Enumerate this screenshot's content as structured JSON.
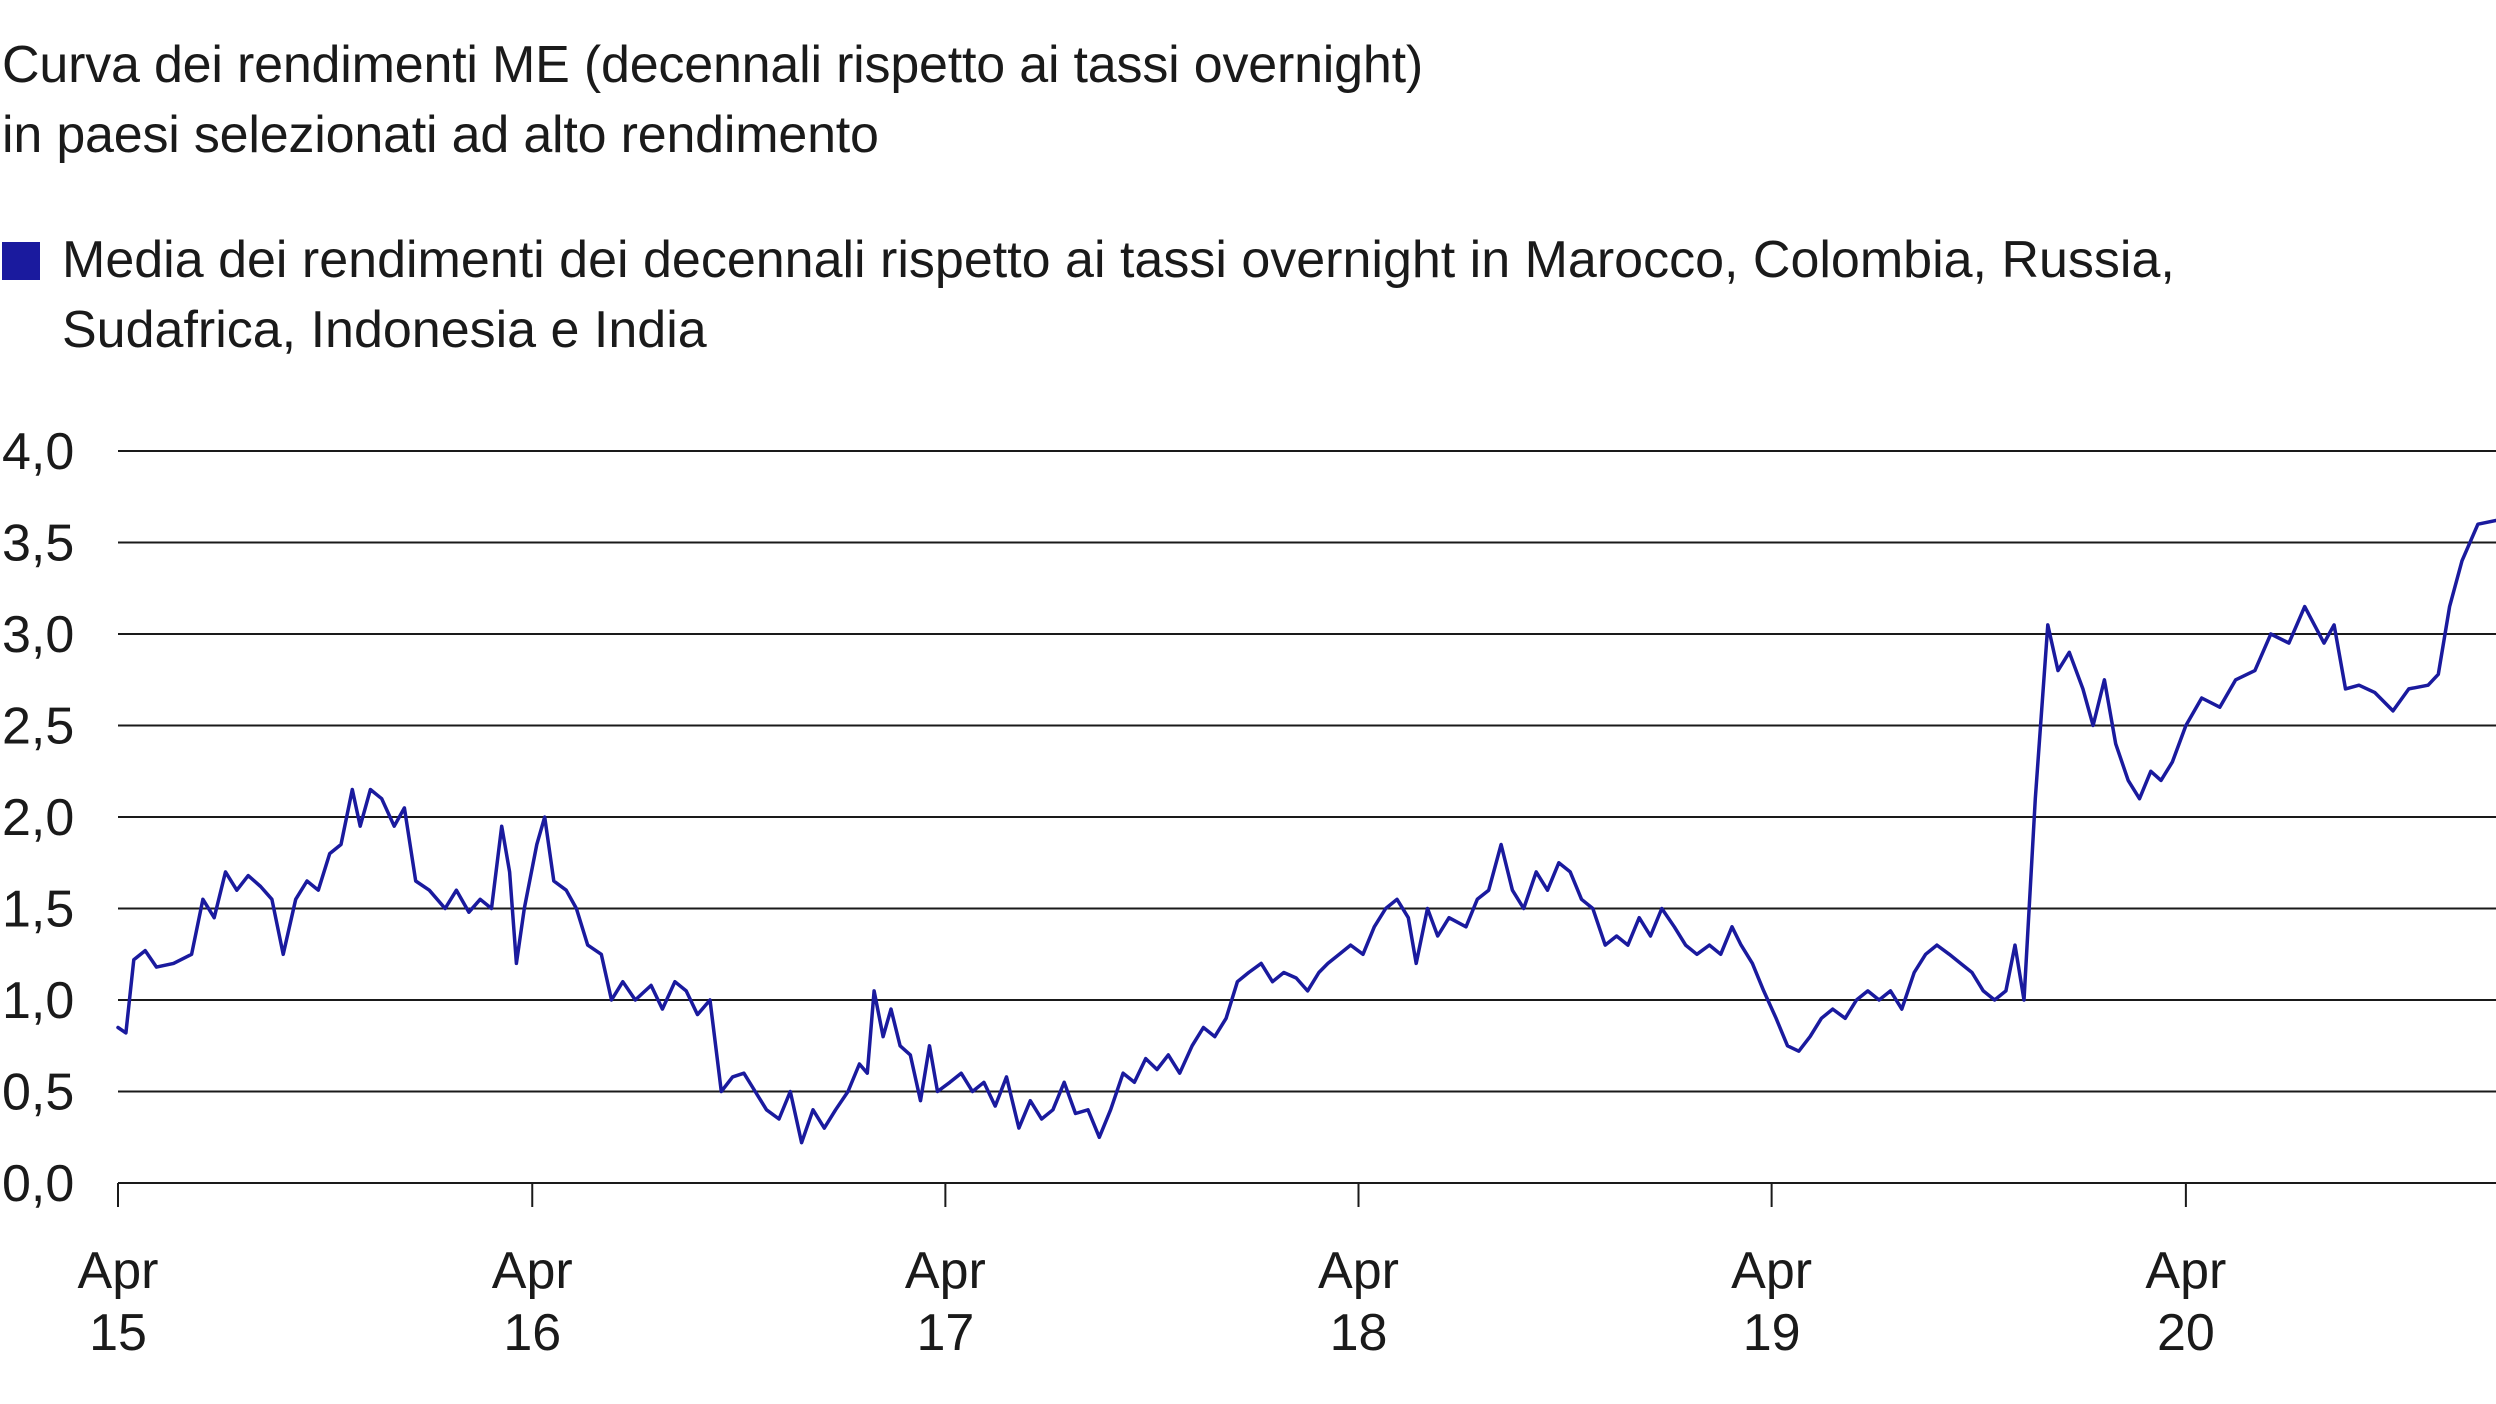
{
  "colors": {
    "series": "#1a1a9e",
    "grid": "#1a1a1a",
    "text": "#1a1a1a"
  },
  "chart_data": {
    "type": "line",
    "title": "Curva dei rendimenti ME (decennali rispetto ai tassi overnight)\nin paesi selezionati ad alto rendimento",
    "legend_placement": "top",
    "grid": true,
    "xlabel": "",
    "ylabel": "",
    "ylim": [
      0,
      4
    ],
    "y_ticks": [
      {
        "value": 0.0,
        "label": "0,0"
      },
      {
        "value": 0.5,
        "label": "0,5"
      },
      {
        "value": 1.0,
        "label": "1,0"
      },
      {
        "value": 1.5,
        "label": "1,5"
      },
      {
        "value": 2.0,
        "label": "2,0"
      },
      {
        "value": 2.5,
        "label": "2,5"
      },
      {
        "value": 3.0,
        "label": "3,0"
      },
      {
        "value": 3.5,
        "label": "3,5"
      },
      {
        "value": 4.0,
        "label": "4,0"
      }
    ],
    "xlim": [
      "2015-04-01",
      "2020-12-31"
    ],
    "x_ticks": [
      {
        "value": "2015-04-01",
        "label_line1": "Apr",
        "label_line2": "15"
      },
      {
        "value": "2016-04-01",
        "label_line1": "Apr",
        "label_line2": "16"
      },
      {
        "value": "2017-04-01",
        "label_line1": "Apr",
        "label_line2": "17"
      },
      {
        "value": "2018-04-01",
        "label_line1": "Apr",
        "label_line2": "18"
      },
      {
        "value": "2019-04-01",
        "label_line1": "Apr",
        "label_line2": "19"
      },
      {
        "value": "2020-04-01",
        "label_line1": "Apr",
        "label_line2": "20"
      }
    ],
    "series": [
      {
        "name": "Media dei rendimenti dei decennali rispetto ai tassi overnight in Marocco, Colombia, Russia, Sudafrica, Indonesia e India",
        "points": [
          [
            "2015-04-01",
            0.85
          ],
          [
            "2015-04-08",
            0.82
          ],
          [
            "2015-04-15",
            1.22
          ],
          [
            "2015-04-25",
            1.27
          ],
          [
            "2015-05-05",
            1.18
          ],
          [
            "2015-05-20",
            1.2
          ],
          [
            "2015-06-05",
            1.25
          ],
          [
            "2015-06-15",
            1.55
          ],
          [
            "2015-06-25",
            1.45
          ],
          [
            "2015-07-05",
            1.7
          ],
          [
            "2015-07-15",
            1.6
          ],
          [
            "2015-07-25",
            1.68
          ],
          [
            "2015-08-05",
            1.62
          ],
          [
            "2015-08-15",
            1.55
          ],
          [
            "2015-08-25",
            1.25
          ],
          [
            "2015-09-05",
            1.55
          ],
          [
            "2015-09-15",
            1.65
          ],
          [
            "2015-09-25",
            1.6
          ],
          [
            "2015-10-05",
            1.8
          ],
          [
            "2015-10-15",
            1.85
          ],
          [
            "2015-10-25",
            2.15
          ],
          [
            "2015-11-01",
            1.95
          ],
          [
            "2015-11-10",
            2.15
          ],
          [
            "2015-11-20",
            2.1
          ],
          [
            "2015-12-01",
            1.95
          ],
          [
            "2015-12-10",
            2.05
          ],
          [
            "2015-12-20",
            1.65
          ],
          [
            "2016-01-01",
            1.6
          ],
          [
            "2016-01-15",
            1.5
          ],
          [
            "2016-01-25",
            1.6
          ],
          [
            "2016-02-05",
            1.48
          ],
          [
            "2016-02-15",
            1.55
          ],
          [
            "2016-02-25",
            1.5
          ],
          [
            "2016-03-05",
            1.95
          ],
          [
            "2016-03-12",
            1.7
          ],
          [
            "2016-03-18",
            1.2
          ],
          [
            "2016-03-25",
            1.5
          ],
          [
            "2016-04-05",
            1.85
          ],
          [
            "2016-04-12",
            2.0
          ],
          [
            "2016-04-20",
            1.65
          ],
          [
            "2016-05-01",
            1.6
          ],
          [
            "2016-05-10",
            1.5
          ],
          [
            "2016-05-20",
            1.3
          ],
          [
            "2016-06-01",
            1.25
          ],
          [
            "2016-06-10",
            1.0
          ],
          [
            "2016-06-20",
            1.1
          ],
          [
            "2016-07-01",
            1.0
          ],
          [
            "2016-07-15",
            1.08
          ],
          [
            "2016-07-25",
            0.95
          ],
          [
            "2016-08-05",
            1.1
          ],
          [
            "2016-08-15",
            1.05
          ],
          [
            "2016-08-25",
            0.92
          ],
          [
            "2016-09-05",
            1.0
          ],
          [
            "2016-09-15",
            0.5
          ],
          [
            "2016-09-25",
            0.58
          ],
          [
            "2016-10-05",
            0.6
          ],
          [
            "2016-10-15",
            0.5
          ],
          [
            "2016-10-25",
            0.4
          ],
          [
            "2016-11-05",
            0.35
          ],
          [
            "2016-11-15",
            0.5
          ],
          [
            "2016-11-25",
            0.22
          ],
          [
            "2016-12-05",
            0.4
          ],
          [
            "2016-12-15",
            0.3
          ],
          [
            "2016-12-25",
            0.4
          ],
          [
            "2017-01-05",
            0.5
          ],
          [
            "2017-01-15",
            0.65
          ],
          [
            "2017-01-22",
            0.6
          ],
          [
            "2017-01-28",
            1.05
          ],
          [
            "2017-02-05",
            0.8
          ],
          [
            "2017-02-12",
            0.95
          ],
          [
            "2017-02-20",
            0.75
          ],
          [
            "2017-03-01",
            0.7
          ],
          [
            "2017-03-10",
            0.45
          ],
          [
            "2017-03-18",
            0.75
          ],
          [
            "2017-03-25",
            0.5
          ],
          [
            "2017-04-05",
            0.55
          ],
          [
            "2017-04-15",
            0.6
          ],
          [
            "2017-04-25",
            0.5
          ],
          [
            "2017-05-05",
            0.55
          ],
          [
            "2017-05-15",
            0.42
          ],
          [
            "2017-05-25",
            0.58
          ],
          [
            "2017-06-05",
            0.3
          ],
          [
            "2017-06-15",
            0.45
          ],
          [
            "2017-06-25",
            0.35
          ],
          [
            "2017-07-05",
            0.4
          ],
          [
            "2017-07-15",
            0.55
          ],
          [
            "2017-07-25",
            0.38
          ],
          [
            "2017-08-05",
            0.4
          ],
          [
            "2017-08-15",
            0.25
          ],
          [
            "2017-08-25",
            0.4
          ],
          [
            "2017-09-05",
            0.6
          ],
          [
            "2017-09-15",
            0.55
          ],
          [
            "2017-09-25",
            0.68
          ],
          [
            "2017-10-05",
            0.62
          ],
          [
            "2017-10-15",
            0.7
          ],
          [
            "2017-10-25",
            0.6
          ],
          [
            "2017-11-05",
            0.75
          ],
          [
            "2017-11-15",
            0.85
          ],
          [
            "2017-11-25",
            0.8
          ],
          [
            "2017-12-05",
            0.9
          ],
          [
            "2017-12-15",
            1.1
          ],
          [
            "2017-12-25",
            1.15
          ],
          [
            "2018-01-05",
            1.2
          ],
          [
            "2018-01-15",
            1.1
          ],
          [
            "2018-01-25",
            1.15
          ],
          [
            "2018-02-05",
            1.12
          ],
          [
            "2018-02-15",
            1.05
          ],
          [
            "2018-02-25",
            1.15
          ],
          [
            "2018-03-05",
            1.2
          ],
          [
            "2018-03-15",
            1.25
          ],
          [
            "2018-03-25",
            1.3
          ],
          [
            "2018-04-05",
            1.25
          ],
          [
            "2018-04-15",
            1.4
          ],
          [
            "2018-04-25",
            1.5
          ],
          [
            "2018-05-05",
            1.55
          ],
          [
            "2018-05-15",
            1.45
          ],
          [
            "2018-05-22",
            1.2
          ],
          [
            "2018-06-01",
            1.5
          ],
          [
            "2018-06-10",
            1.35
          ],
          [
            "2018-06-20",
            1.45
          ],
          [
            "2018-07-05",
            1.4
          ],
          [
            "2018-07-15",
            1.55
          ],
          [
            "2018-07-25",
            1.6
          ],
          [
            "2018-08-05",
            1.85
          ],
          [
            "2018-08-15",
            1.6
          ],
          [
            "2018-08-25",
            1.5
          ],
          [
            "2018-09-05",
            1.7
          ],
          [
            "2018-09-15",
            1.6
          ],
          [
            "2018-09-25",
            1.75
          ],
          [
            "2018-10-05",
            1.7
          ],
          [
            "2018-10-15",
            1.55
          ],
          [
            "2018-10-25",
            1.5
          ],
          [
            "2018-11-05",
            1.3
          ],
          [
            "2018-11-15",
            1.35
          ],
          [
            "2018-11-25",
            1.3
          ],
          [
            "2018-12-05",
            1.45
          ],
          [
            "2018-12-15",
            1.35
          ],
          [
            "2018-12-25",
            1.5
          ],
          [
            "2019-01-05",
            1.4
          ],
          [
            "2019-01-15",
            1.3
          ],
          [
            "2019-01-25",
            1.25
          ],
          [
            "2019-02-05",
            1.3
          ],
          [
            "2019-02-15",
            1.25
          ],
          [
            "2019-02-25",
            1.4
          ],
          [
            "2019-03-05",
            1.3
          ],
          [
            "2019-03-15",
            1.2
          ],
          [
            "2019-03-25",
            1.05
          ],
          [
            "2019-04-05",
            0.9
          ],
          [
            "2019-04-15",
            0.75
          ],
          [
            "2019-04-25",
            0.72
          ],
          [
            "2019-05-05",
            0.8
          ],
          [
            "2019-05-15",
            0.9
          ],
          [
            "2019-05-25",
            0.95
          ],
          [
            "2019-06-05",
            0.9
          ],
          [
            "2019-06-15",
            1.0
          ],
          [
            "2019-06-25",
            1.05
          ],
          [
            "2019-07-05",
            1.0
          ],
          [
            "2019-07-15",
            1.05
          ],
          [
            "2019-07-25",
            0.95
          ],
          [
            "2019-08-05",
            1.15
          ],
          [
            "2019-08-15",
            1.25
          ],
          [
            "2019-08-25",
            1.3
          ],
          [
            "2019-09-05",
            1.25
          ],
          [
            "2019-09-15",
            1.2
          ],
          [
            "2019-09-25",
            1.15
          ],
          [
            "2019-10-05",
            1.05
          ],
          [
            "2019-10-15",
            1.0
          ],
          [
            "2019-10-25",
            1.05
          ],
          [
            "2019-11-02",
            1.3
          ],
          [
            "2019-11-10",
            1.0
          ],
          [
            "2019-11-20",
            2.1
          ],
          [
            "2019-12-01",
            3.05
          ],
          [
            "2019-12-10",
            2.8
          ],
          [
            "2019-12-20",
            2.9
          ],
          [
            "2020-01-01",
            2.7
          ],
          [
            "2020-01-10",
            2.5
          ],
          [
            "2020-01-20",
            2.75
          ],
          [
            "2020-01-30",
            2.4
          ],
          [
            "2020-02-10",
            2.2
          ],
          [
            "2020-02-20",
            2.1
          ],
          [
            "2020-03-01",
            2.25
          ],
          [
            "2020-03-10",
            2.2
          ],
          [
            "2020-03-20",
            2.3
          ],
          [
            "2020-04-01",
            2.5
          ],
          [
            "2020-04-15",
            2.65
          ],
          [
            "2020-05-01",
            2.6
          ],
          [
            "2020-05-15",
            2.75
          ],
          [
            "2020-06-01",
            2.8
          ],
          [
            "2020-06-15",
            3.0
          ],
          [
            "2020-07-01",
            2.95
          ],
          [
            "2020-07-15",
            3.15
          ],
          [
            "2020-08-01",
            2.95
          ],
          [
            "2020-08-10",
            3.05
          ],
          [
            "2020-08-20",
            2.7
          ],
          [
            "2020-09-01",
            2.72
          ],
          [
            "2020-09-15",
            2.68
          ],
          [
            "2020-10-01",
            2.58
          ],
          [
            "2020-10-15",
            2.7
          ],
          [
            "2020-11-01",
            2.72
          ],
          [
            "2020-11-10",
            2.78
          ],
          [
            "2020-11-20",
            3.15
          ],
          [
            "2020-12-01",
            3.4
          ],
          [
            "2020-12-15",
            3.6
          ],
          [
            "2020-12-31",
            3.62
          ]
        ]
      }
    ]
  }
}
